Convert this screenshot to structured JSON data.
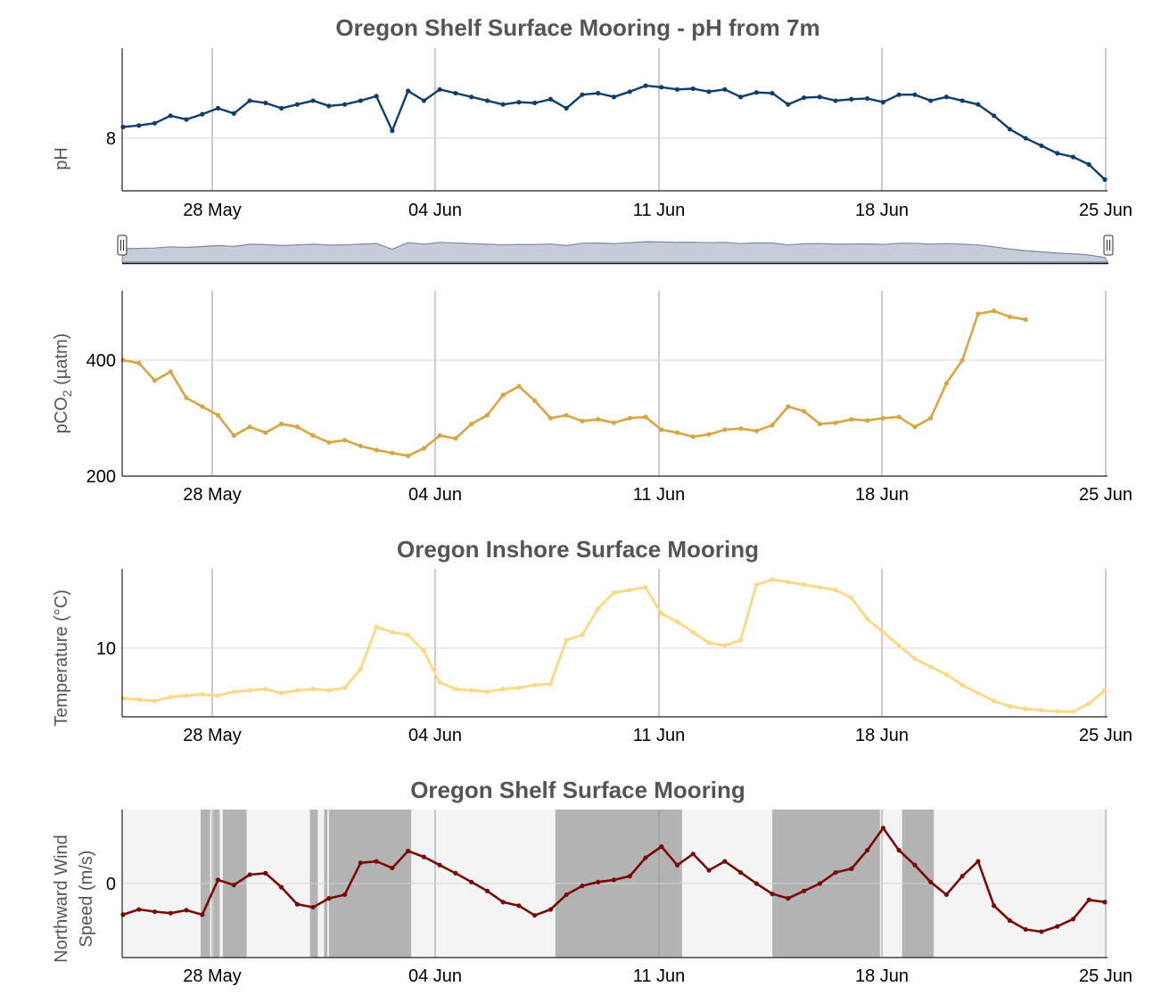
{
  "colors": {
    "ph": "#0f3e6e",
    "pco2": "#d9a441",
    "temperature": "#fad884",
    "wind": "#7a0a0a",
    "navigator_fill": "#c6ccd8",
    "navigator_line": "#7b8aa6",
    "shade": "#b3b3b3",
    "plot_band_bg": "#f4f4f4"
  },
  "chart_data": [
    {
      "type": "line",
      "title": "Oregon Shelf Surface Mooring - pH from 7m",
      "ylabel": "pH",
      "xlabel": "",
      "x_range": [
        "2022-05-24",
        "2022-06-25"
      ],
      "x_ticks": [
        "28 May",
        "04 Jun",
        "11 Jun",
        "18 Jun",
        "25 Jun"
      ],
      "ylim": [
        7.93,
        8.12
      ],
      "y_ticks": [
        {
          "value": 8,
          "label": "8"
        }
      ],
      "grid": true,
      "series": [
        {
          "x_days": [
            0,
            0.5,
            1,
            1.5,
            2,
            2.5,
            3,
            3.5,
            4,
            4.5,
            5,
            5.5,
            6,
            6.5,
            7,
            7.5,
            8,
            8.5,
            9,
            9.5,
            10,
            10.5,
            11,
            11.5,
            12,
            12.5,
            13,
            13.5,
            14,
            14.5,
            15,
            15.5,
            16,
            16.5,
            17,
            17.5,
            18,
            18.5,
            19,
            19.5,
            20,
            20.5,
            21,
            21.5,
            22,
            22.5,
            23,
            23.5,
            24,
            24.5,
            25,
            25.5,
            26,
            26.5,
            27,
            27.5,
            28,
            28.5,
            29,
            29.5,
            30,
            30.5,
            31
          ],
          "values": [
            8.015,
            8.017,
            8.02,
            8.03,
            8.025,
            8.032,
            8.04,
            8.033,
            8.05,
            8.047,
            8.04,
            8.045,
            8.05,
            8.043,
            8.045,
            8.05,
            8.056,
            8.01,
            8.063,
            8.05,
            8.065,
            8.06,
            8.055,
            8.05,
            8.045,
            8.048,
            8.047,
            8.052,
            8.04,
            8.058,
            8.06,
            8.055,
            8.062,
            8.07,
            8.068,
            8.065,
            8.066,
            8.062,
            8.065,
            8.055,
            8.061,
            8.06,
            8.045,
            8.054,
            8.055,
            8.05,
            8.052,
            8.053,
            8.048,
            8.058,
            8.058,
            8.05,
            8.055,
            8.05,
            8.045,
            8.03,
            8.012,
            8.0,
            7.99,
            7.98,
            7.975,
            7.965,
            7.945
          ]
        }
      ]
    },
    {
      "type": "line",
      "title": "",
      "ylabel": "pCO2 (µatm)",
      "ylabel_main": "pCO",
      "ylabel_sub": "2",
      "ylabel_unit": " (µatm)",
      "xlabel": "",
      "x_range": [
        "2022-05-24",
        "2022-06-25"
      ],
      "x_ticks": [
        "28 May",
        "04 Jun",
        "11 Jun",
        "18 Jun",
        "25 Jun"
      ],
      "ylim": [
        200,
        520
      ],
      "y_ticks": [
        {
          "value": 200,
          "label": "200"
        },
        {
          "value": 400,
          "label": "400"
        }
      ],
      "grid": true,
      "series": [
        {
          "x_days": [
            0,
            0.5,
            1,
            1.5,
            2,
            2.5,
            3,
            3.5,
            4,
            4.5,
            5,
            5.5,
            6,
            6.5,
            7,
            7.5,
            8,
            8.5,
            9,
            9.5,
            10,
            10.5,
            11,
            11.5,
            12,
            12.5,
            13,
            13.5,
            14,
            14.5,
            15,
            15.5,
            16,
            16.5,
            17,
            17.5,
            18,
            18.5,
            19,
            19.5,
            20,
            20.5,
            21,
            21.5,
            22,
            22.5,
            23,
            23.5,
            24,
            24.5,
            25,
            25.5,
            26,
            26.5,
            27,
            27.5,
            28,
            28.5,
            29,
            29.5,
            30,
            30.5,
            31
          ],
          "values": [
            400,
            395,
            365,
            380,
            335,
            320,
            305,
            270,
            285,
            275,
            290,
            285,
            270,
            258,
            262,
            252,
            245,
            240,
            235,
            248,
            270,
            265,
            290,
            305,
            340,
            355,
            330,
            300,
            305,
            295,
            298,
            292,
            300,
            302,
            280,
            275,
            268,
            272,
            280,
            282,
            278,
            288,
            320,
            312,
            290,
            292,
            298,
            296,
            300,
            302,
            285,
            300,
            360,
            400,
            480,
            485,
            475,
            470,
            null,
            null,
            null,
            null,
            null
          ]
        }
      ]
    },
    {
      "type": "line",
      "title": "Oregon Inshore Surface Mooring",
      "ylabel": "Temperature (°C)",
      "xlabel": "",
      "x_range": [
        "2022-05-24",
        "2022-06-25"
      ],
      "x_ticks": [
        "28 May",
        "04 Jun",
        "11 Jun",
        "18 Jun",
        "25 Jun"
      ],
      "ylim": [
        7.4,
        13.0
      ],
      "y_ticks": [
        {
          "value": 10,
          "label": "10"
        }
      ],
      "grid": true,
      "series": [
        {
          "x_days": [
            0,
            0.5,
            1,
            1.5,
            2,
            2.5,
            3,
            3.5,
            4,
            4.5,
            5,
            5.5,
            6,
            6.5,
            7,
            7.5,
            8,
            8.5,
            9,
            9.5,
            10,
            10.5,
            11,
            11.5,
            12,
            12.5,
            13,
            13.5,
            14,
            14.5,
            15,
            15.5,
            16,
            16.5,
            17,
            17.5,
            18,
            18.5,
            19,
            19.5,
            20,
            20.5,
            21,
            21.5,
            22,
            22.5,
            23,
            23.5,
            24,
            24.5,
            25,
            25.5,
            26,
            26.5,
            27,
            27.5,
            28,
            28.5,
            29,
            29.5,
            30,
            30.5,
            31
          ],
          "values": [
            8.1,
            8.05,
            8.0,
            8.15,
            8.2,
            8.25,
            8.2,
            8.35,
            8.4,
            8.45,
            8.3,
            8.4,
            8.45,
            8.4,
            8.5,
            9.2,
            10.8,
            10.6,
            10.5,
            9.9,
            8.7,
            8.45,
            8.4,
            8.35,
            8.45,
            8.5,
            8.6,
            8.65,
            10.3,
            10.5,
            11.5,
            12.1,
            12.2,
            12.3,
            11.3,
            11.0,
            10.6,
            10.2,
            10.1,
            10.3,
            12.4,
            12.6,
            12.5,
            12.4,
            12.3,
            12.2,
            11.9,
            11.1,
            10.6,
            10.1,
            9.6,
            9.3,
            9.0,
            8.6,
            8.3,
            8.0,
            7.8,
            7.7,
            7.65,
            7.6,
            7.6,
            7.9,
            8.4
          ]
        }
      ]
    },
    {
      "type": "line",
      "title": "Oregon Shelf Surface Mooring",
      "ylabel": "Northward Wind Speed (m/s)",
      "ylabel_line1": "Northward Wind",
      "ylabel_line2": "Speed (m/s)",
      "xlabel": "",
      "x_range": [
        "2022-05-24",
        "2022-06-25"
      ],
      "x_ticks": [
        "28 May",
        "04 Jun",
        "11 Jun",
        "18 Jun",
        "25 Jun"
      ],
      "ylim": [
        -10,
        10
      ],
      "y_ticks": [
        {
          "value": 0,
          "label": "0"
        }
      ],
      "grid": true,
      "shaded_ranges_days": [
        [
          2.45,
          2.75
        ],
        [
          2.85,
          3.05
        ],
        [
          3.15,
          3.9
        ],
        [
          5.9,
          6.15
        ],
        [
          6.35,
          6.45
        ],
        [
          6.5,
          9.1
        ],
        [
          13.65,
          17.65
        ],
        [
          20.5,
          23.9
        ],
        [
          24.6,
          25.6
        ]
      ],
      "series": [
        {
          "x_days": [
            0,
            0.5,
            1,
            1.5,
            2,
            2.5,
            3,
            3.5,
            4,
            4.5,
            5,
            5.5,
            6,
            6.5,
            7,
            7.5,
            8,
            8.5,
            9,
            9.5,
            10,
            10.5,
            11,
            11.5,
            12,
            12.5,
            13,
            13.5,
            14,
            14.5,
            15,
            15.5,
            16,
            16.5,
            17,
            17.5,
            18,
            18.5,
            19,
            19.5,
            20,
            20.5,
            21,
            21.5,
            22,
            22.5,
            23,
            23.5,
            24,
            24.5,
            25,
            25.5,
            26,
            26.5,
            27,
            27.5,
            28,
            28.5,
            29,
            29.5,
            30,
            30.5,
            31
          ],
          "values": [
            -4.2,
            -3.5,
            -3.8,
            -4.0,
            -3.6,
            -4.2,
            0.5,
            -0.2,
            1.2,
            1.4,
            -0.5,
            -2.8,
            -3.2,
            -2.0,
            -1.5,
            2.8,
            3.0,
            2.1,
            4.4,
            3.6,
            2.5,
            1.4,
            0.2,
            -1.0,
            -2.5,
            -3.0,
            -4.3,
            -3.5,
            -1.5,
            -0.3,
            0.2,
            0.5,
            1.0,
            3.5,
            5.0,
            2.5,
            4.0,
            1.8,
            3.0,
            1.5,
            0.0,
            -1.4,
            -2.0,
            -1.0,
            0.0,
            1.5,
            2.0,
            4.5,
            7.5,
            4.5,
            2.5,
            0.2,
            -1.5,
            1.0,
            3.0,
            -3.0,
            -5.0,
            -6.2,
            -6.5,
            -5.8,
            -4.8,
            -2.2,
            -2.5
          ]
        }
      ]
    }
  ]
}
